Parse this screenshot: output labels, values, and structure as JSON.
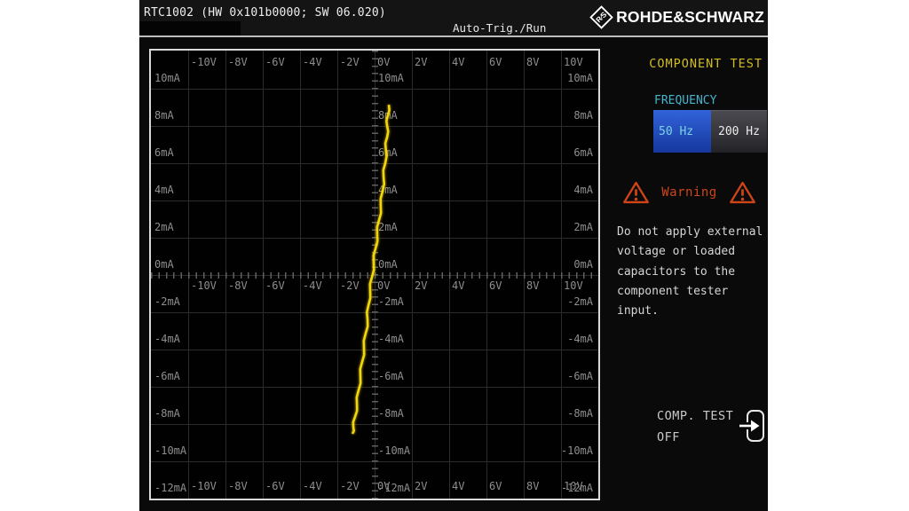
{
  "topbar": {
    "title": "RTC1002 (HW 0x101b0000; SW 06.020)",
    "trigger_status": "Auto-Trig./Run",
    "brand": "ROHDE&SCHWARZ"
  },
  "sidebar": {
    "title": "COMPONENT TEST",
    "frequency": {
      "label": "FREQUENCY",
      "options": [
        {
          "label": "50 Hz",
          "selected": true
        },
        {
          "label": "200 Hz",
          "selected": false
        }
      ]
    },
    "warning": {
      "title": "Warning",
      "text": "Do not apply external\nvoltage or loaded\ncapacitors to the\ncomponent tester\ninput."
    },
    "comp_test": {
      "line1": "COMP. TEST",
      "line2": "OFF"
    }
  },
  "icons": {
    "brand_mark": "rs-diamond-logo-icon",
    "warning_left": "warning-triangle-icon",
    "warning_right": "warning-triangle-icon",
    "comp_test": "exit-arrow-icon"
  },
  "colors": {
    "trace": "#f2d60c",
    "sidebar_title": "#d2bd20",
    "frequency_label": "#45b4cc",
    "selected_button_blue": "#2456cc",
    "warning": "#cf4517",
    "grid": "#2c2c2c",
    "tick_text": "#8f8f8f"
  },
  "chart_data": {
    "type": "line",
    "x_unit": "V",
    "y_unit": "mA",
    "x_range": [
      -12,
      12
    ],
    "y_range": [
      -12,
      12
    ],
    "grid": true,
    "x_ticks": [
      {
        "label": "-10V",
        "value": -10
      },
      {
        "label": "-8V",
        "value": -8
      },
      {
        "label": "-6V",
        "value": -6
      },
      {
        "label": "-4V",
        "value": -4
      },
      {
        "label": "-2V",
        "value": -2
      },
      {
        "label": "0V",
        "value": 0
      },
      {
        "label": "2V",
        "value": 2
      },
      {
        "label": "4V",
        "value": 4
      },
      {
        "label": "6V",
        "value": 6
      },
      {
        "label": "8V",
        "value": 8
      },
      {
        "label": "10V",
        "value": 10
      }
    ],
    "y_ticks": [
      {
        "label": "10mA",
        "value": 10
      },
      {
        "label": "8mA",
        "value": 8
      },
      {
        "label": "6mA",
        "value": 6
      },
      {
        "label": "4mA",
        "value": 4
      },
      {
        "label": "2mA",
        "value": 2
      },
      {
        "label": "0mA",
        "value": 0
      },
      {
        "label": "-2mA",
        "value": -2
      },
      {
        "label": "-4mA",
        "value": -4
      },
      {
        "label": "-6mA",
        "value": -6
      },
      {
        "label": "-8mA",
        "value": -8
      },
      {
        "label": "-10mA",
        "value": -10
      },
      {
        "label": "-12mA",
        "value": -12
      }
    ],
    "trace_color": "#f2d60c",
    "series": [
      {
        "name": "component-trace",
        "points": [
          [
            0.76,
            9.14
          ],
          [
            0.71,
            8.55
          ],
          [
            0.67,
            8.0
          ],
          [
            0.67,
            7.4
          ],
          [
            0.6,
            6.75
          ],
          [
            0.57,
            6.0
          ],
          [
            0.48,
            5.25
          ],
          [
            0.43,
            4.5
          ],
          [
            0.33,
            3.7
          ],
          [
            0.24,
            2.95
          ],
          [
            0.14,
            2.2
          ],
          [
            0.05,
            1.43
          ],
          [
            -0.05,
            0.67
          ],
          [
            -0.14,
            -0.1
          ],
          [
            -0.24,
            -0.86
          ],
          [
            -0.33,
            -1.62
          ],
          [
            -0.38,
            -2.38
          ],
          [
            -0.48,
            -3.14
          ],
          [
            -0.57,
            -3.9
          ],
          [
            -0.67,
            -4.67
          ],
          [
            -0.76,
            -5.43
          ],
          [
            -0.86,
            -6.19
          ],
          [
            -0.95,
            -6.95
          ],
          [
            -1.05,
            -7.62
          ],
          [
            -1.14,
            -8.19
          ],
          [
            -1.19,
            -8.52
          ]
        ]
      }
    ]
  }
}
